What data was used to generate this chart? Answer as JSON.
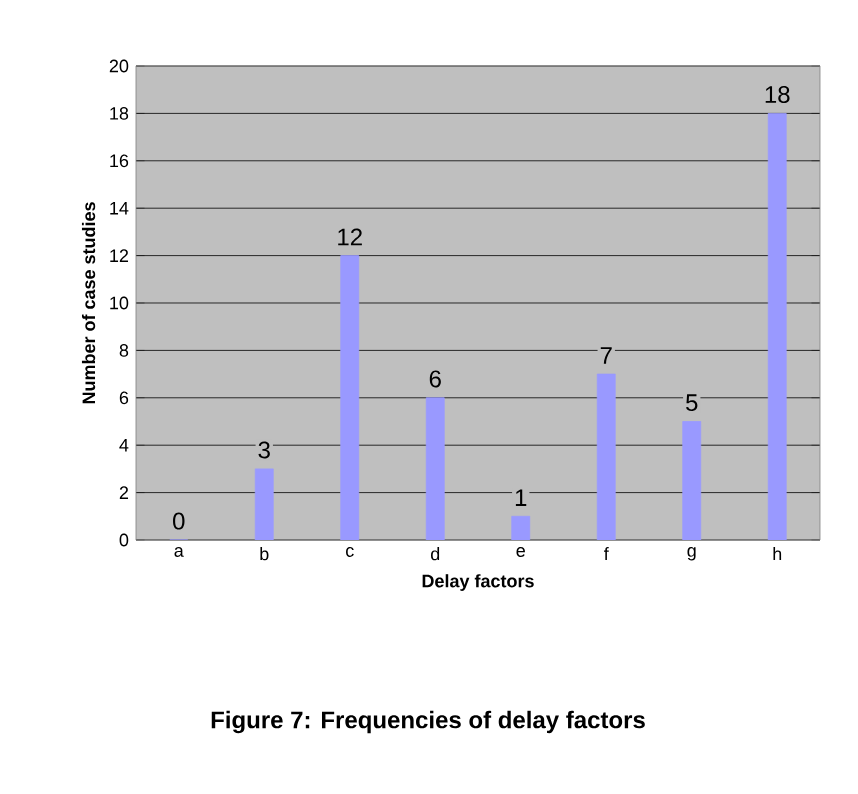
{
  "chart_data": {
    "type": "bar",
    "title": "Figure 7: Frequencies of delay factors",
    "xlabel": "Delay factors",
    "ylabel": "Number of case studies",
    "categories": [
      "a",
      "b",
      "c",
      "d",
      "e",
      "f",
      "g",
      "h"
    ],
    "values": [
      0,
      3,
      12,
      6,
      1,
      7,
      5,
      18
    ],
    "color": "#9999ff",
    "ylim": [
      0,
      20
    ],
    "yticks": [
      0,
      2,
      4,
      6,
      8,
      10,
      12,
      14,
      16,
      18,
      20
    ],
    "grid": "y",
    "data_labels": true
  }
}
